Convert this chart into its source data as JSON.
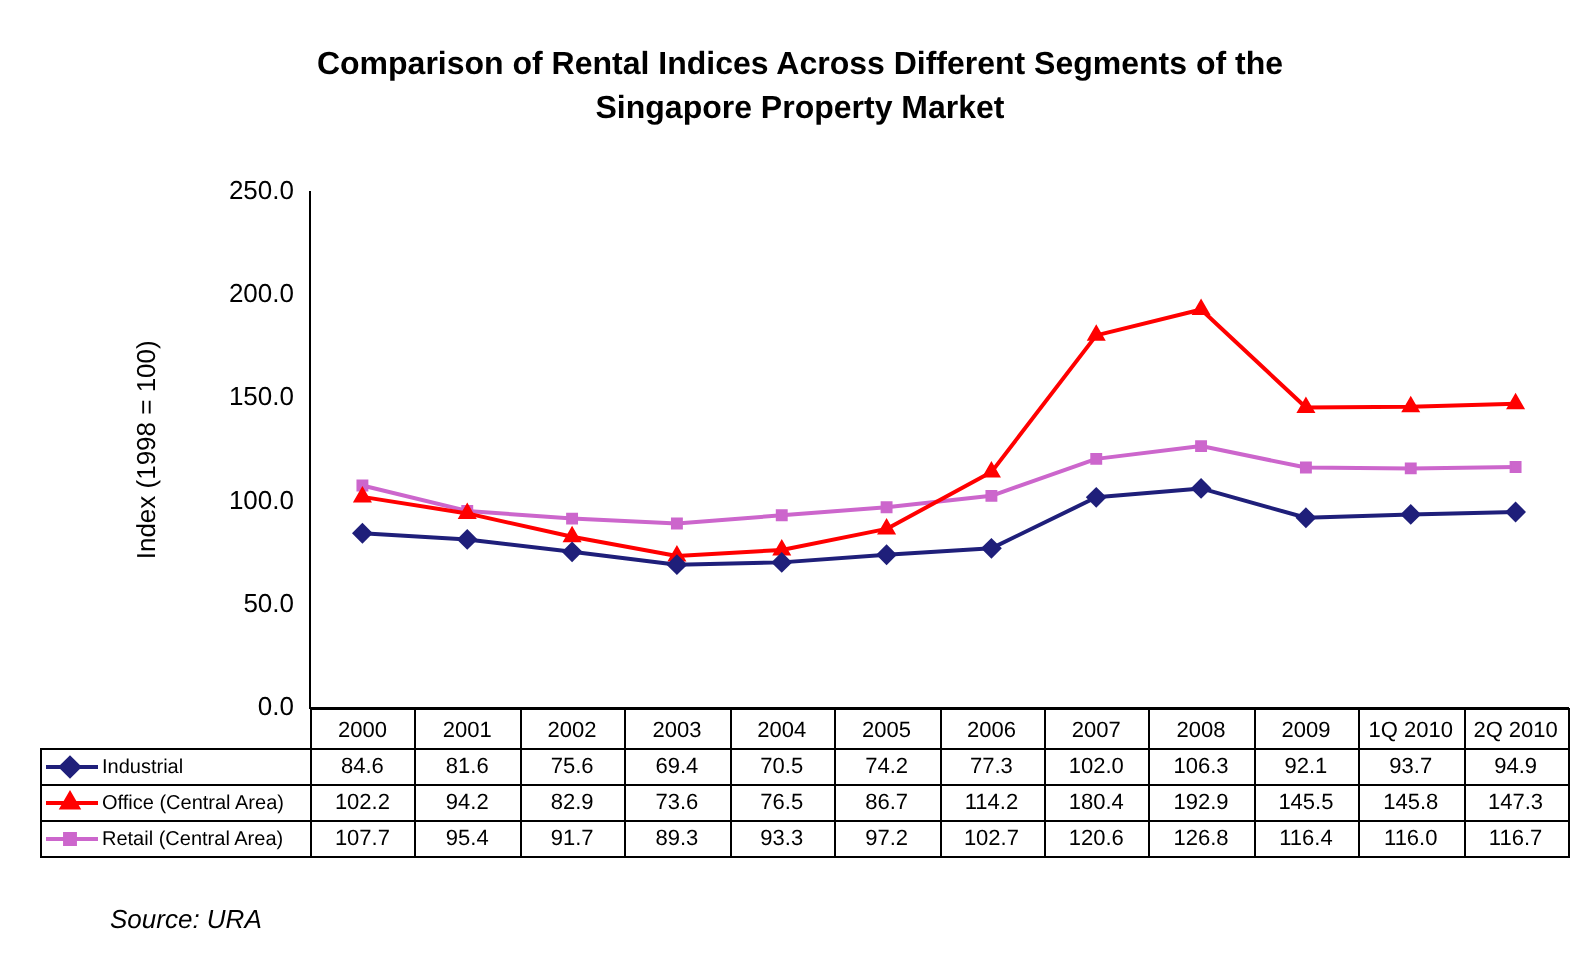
{
  "chart_data": {
    "type": "line",
    "title": "Comparison of Rental Indices Across Different Segments of the Singapore Property Market",
    "ylabel": "Index (1998 = 100)",
    "categories": [
      "2000",
      "2001",
      "2002",
      "2003",
      "2004",
      "2005",
      "2006",
      "2007",
      "2008",
      "2009",
      "1Q 2010",
      "2Q 2010"
    ],
    "series": [
      {
        "name": "Industrial",
        "color": "#1f1f7a",
        "marker": "diamond",
        "values": [
          84.6,
          81.6,
          75.6,
          69.4,
          70.5,
          74.2,
          77.3,
          102.0,
          106.3,
          92.1,
          93.7,
          94.9
        ],
        "value_labels": [
          "84.6",
          "81.6",
          "75.6",
          "69.4",
          "70.5",
          "74.2",
          "77.3",
          "102.0",
          "106.3",
          "92.1",
          "93.7",
          "94.9"
        ]
      },
      {
        "name": "Office (Central Area)",
        "color": "#ff0000",
        "marker": "triangle",
        "values": [
          102.2,
          94.2,
          82.9,
          73.6,
          76.5,
          86.7,
          114.2,
          180.4,
          192.9,
          145.5,
          145.8,
          147.3
        ],
        "value_labels": [
          "102.2",
          "94.2",
          "82.9",
          "73.6",
          "76.5",
          "86.7",
          "114.2",
          "180.4",
          "192.9",
          "145.5",
          "145.8",
          "147.3"
        ]
      },
      {
        "name": "Retail (Central Area)",
        "color": "#cc66cc",
        "marker": "square",
        "values": [
          107.7,
          95.4,
          91.7,
          89.3,
          93.3,
          97.2,
          102.7,
          120.6,
          126.8,
          116.4,
          116.0,
          116.7
        ],
        "value_labels": [
          "107.7",
          "95.4",
          "91.7",
          "89.3",
          "93.3",
          "97.2",
          "102.7",
          "120.6",
          "126.8",
          "116.4",
          "116.0",
          "116.7"
        ]
      }
    ],
    "ylim": [
      0,
      250
    ],
    "yticks": [
      {
        "value": 0,
        "label": "0.0"
      },
      {
        "value": 50,
        "label": "50.0"
      },
      {
        "value": 100,
        "label": "100.0"
      },
      {
        "value": 150,
        "label": "150.0"
      },
      {
        "value": 200,
        "label": "200.0"
      },
      {
        "value": 250,
        "label": "250.0"
      }
    ],
    "grid": false,
    "legend": "bottom",
    "line_style": "solid",
    "annotations": [
      "Source: URA"
    ]
  }
}
